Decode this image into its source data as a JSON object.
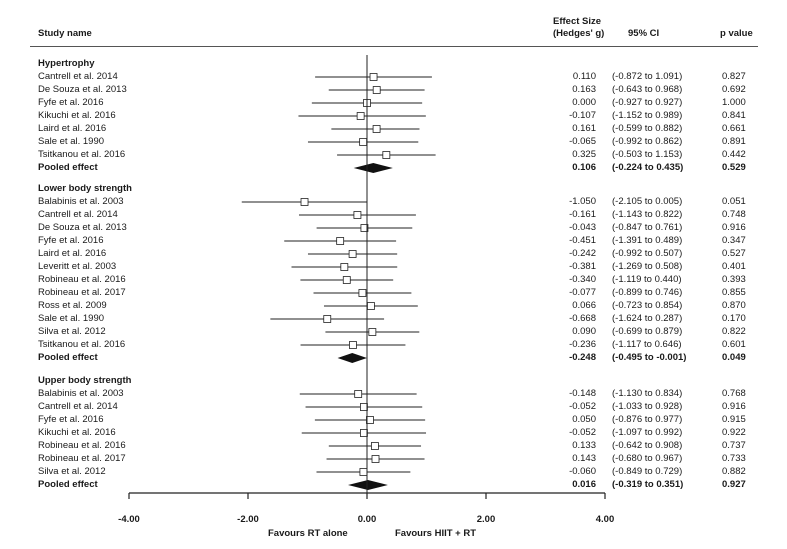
{
  "header": {
    "study_col": "Study name",
    "effect_col_line1": "Effect Size",
    "effect_col_line2": "(Hedges' g)",
    "ci_col": "95% CI",
    "p_col": "p value"
  },
  "chart_data": {
    "type": "forest",
    "xlim": [
      -4,
      4
    ],
    "x_ticks": [
      -4,
      -2,
      0,
      2,
      4
    ],
    "x_tick_labels": [
      "-4.00",
      "-2.00",
      "0.00",
      "2.00",
      "4.00"
    ],
    "favours_left": "Favours RT alone",
    "favours_right": "Favours HIIT + RT",
    "groups": [
      {
        "name": "Hypertrophy",
        "studies": [
          {
            "study": "Cantrell et al. 2014",
            "g": 0.11,
            "lo": -0.872,
            "hi": 1.091,
            "g_text": "0.110",
            "ci_text": "(-0.872 to 1.091)",
            "p_text": "0.827"
          },
          {
            "study": "De Souza et al. 2013",
            "g": 0.163,
            "lo": -0.643,
            "hi": 0.968,
            "g_text": "0.163",
            "ci_text": "(-0.643 to 0.968)",
            "p_text": "0.692"
          },
          {
            "study": "Fyfe et al. 2016",
            "g": 0.0,
            "lo": -0.927,
            "hi": 0.927,
            "g_text": "0.000",
            "ci_text": "(-0.927 to 0.927)",
            "p_text": "1.000"
          },
          {
            "study": "Kikuchi et al. 2016",
            "g": -0.107,
            "lo": -1.152,
            "hi": 0.989,
            "g_text": "-0.107",
            "ci_text": "(-1.152 to 0.989)",
            "p_text": "0.841"
          },
          {
            "study": "Laird et al. 2016",
            "g": 0.161,
            "lo": -0.599,
            "hi": 0.882,
            "g_text": "0.161",
            "ci_text": "(-0.599 to 0.882)",
            "p_text": "0.661"
          },
          {
            "study": "Sale et al. 1990",
            "g": -0.065,
            "lo": -0.992,
            "hi": 0.862,
            "g_text": "-0.065",
            "ci_text": "(-0.992 to 0.862)",
            "p_text": "0.891"
          },
          {
            "study": "Tsitkanou et al. 2016",
            "g": 0.325,
            "lo": -0.503,
            "hi": 1.153,
            "g_text": "0.325",
            "ci_text": "(-0.503 to 1.153)",
            "p_text": "0.442"
          }
        ],
        "pooled": {
          "label": "Pooled effect",
          "g": 0.106,
          "lo": -0.224,
          "hi": 0.435,
          "g_text": "0.106",
          "ci_text": "(-0.224 to 0.435)",
          "p_text": "0.529"
        }
      },
      {
        "name": "Lower body strength",
        "studies": [
          {
            "study": "Balabinis et al. 2003",
            "g": -1.05,
            "lo": -2.105,
            "hi": 0.005,
            "g_text": "-1.050",
            "ci_text": "(-2.105 to 0.005)",
            "p_text": "0.051"
          },
          {
            "study": "Cantrell et al. 2014",
            "g": -0.161,
            "lo": -1.143,
            "hi": 0.822,
            "g_text": "-0.161",
            "ci_text": "(-1.143 to 0.822)",
            "p_text": "0.748"
          },
          {
            "study": "De Souza et al. 2013",
            "g": -0.043,
            "lo": -0.847,
            "hi": 0.761,
            "g_text": "-0.043",
            "ci_text": "(-0.847 to 0.761)",
            "p_text": "0.916"
          },
          {
            "study": "Fyfe et al. 2016",
            "g": -0.451,
            "lo": -1.391,
            "hi": 0.489,
            "g_text": "-0.451",
            "ci_text": "(-1.391 to 0.489)",
            "p_text": "0.347"
          },
          {
            "study": "Laird et al. 2016",
            "g": -0.242,
            "lo": -0.992,
            "hi": 0.507,
            "g_text": "-0.242",
            "ci_text": "(-0.992 to 0.507)",
            "p_text": "0.527"
          },
          {
            "study": "Leveritt et al. 2003",
            "g": -0.381,
            "lo": -1.269,
            "hi": 0.508,
            "g_text": "-0.381",
            "ci_text": "(-1.269 to 0.508)",
            "p_text": "0.401"
          },
          {
            "study": "Robineau et al. 2016",
            "g": -0.34,
            "lo": -1.119,
            "hi": 0.44,
            "g_text": "-0.340",
            "ci_text": "(-1.119 to 0.440)",
            "p_text": "0.393"
          },
          {
            "study": "Robineau et al. 2017",
            "g": -0.077,
            "lo": -0.899,
            "hi": 0.746,
            "g_text": "-0.077",
            "ci_text": "(-0.899 to 0.746)",
            "p_text": "0.855"
          },
          {
            "study": "Ross et al. 2009",
            "g": 0.066,
            "lo": -0.723,
            "hi": 0.854,
            "g_text": "0.066",
            "ci_text": "(-0.723 to 0.854)",
            "p_text": "0.870"
          },
          {
            "study": "Sale et al. 1990",
            "g": -0.668,
            "lo": -1.624,
            "hi": 0.287,
            "g_text": "-0.668",
            "ci_text": "(-1.624 to 0.287)",
            "p_text": "0.170"
          },
          {
            "study": "Silva et al. 2012",
            "g": 0.09,
            "lo": -0.699,
            "hi": 0.879,
            "g_text": "0.090",
            "ci_text": "(-0.699 to 0.879)",
            "p_text": "0.822"
          },
          {
            "study": "Tsitkanou et al. 2016",
            "g": -0.236,
            "lo": -1.117,
            "hi": 0.646,
            "g_text": "-0.236",
            "ci_text": "(-1.117 to 0.646)",
            "p_text": "0.601"
          }
        ],
        "pooled": {
          "label": "Pooled effect",
          "g": -0.248,
          "lo": -0.495,
          "hi": -0.001,
          "g_text": "-0.248",
          "ci_text": "(-0.495 to -0.001)",
          "p_text": "0.049"
        }
      },
      {
        "name": "Upper body strength",
        "studies": [
          {
            "study": "Balabinis et al. 2003",
            "g": -0.148,
            "lo": -1.13,
            "hi": 0.834,
            "g_text": "-0.148",
            "ci_text": "(-1.130 to 0.834)",
            "p_text": "0.768"
          },
          {
            "study": "Cantrell et al. 2014",
            "g": -0.052,
            "lo": -1.033,
            "hi": 0.928,
            "g_text": "-0.052",
            "ci_text": "(-1.033 to 0.928)",
            "p_text": "0.916"
          },
          {
            "study": "Fyfe et al. 2016",
            "g": 0.05,
            "lo": -0.876,
            "hi": 0.977,
            "g_text": "0.050",
            "ci_text": "(-0.876 to 0.977)",
            "p_text": "0.915"
          },
          {
            "study": "Kikuchi et al. 2016",
            "g": -0.052,
            "lo": -1.097,
            "hi": 0.992,
            "g_text": "-0.052",
            "ci_text": "(-1.097 to 0.992)",
            "p_text": "0.922"
          },
          {
            "study": "Robineau et al. 2016",
            "g": 0.133,
            "lo": -0.642,
            "hi": 0.908,
            "g_text": "0.133",
            "ci_text": "(-0.642 to 0.908)",
            "p_text": "0.737"
          },
          {
            "study": "Robineau et al. 2017",
            "g": 0.143,
            "lo": -0.68,
            "hi": 0.967,
            "g_text": "0.143",
            "ci_text": "(-0.680 to 0.967)",
            "p_text": "0.733"
          },
          {
            "study": "Silva et al. 2012",
            "g": -0.06,
            "lo": -0.849,
            "hi": 0.729,
            "g_text": "-0.060",
            "ci_text": "(-0.849 to 0.729)",
            "p_text": "0.882"
          }
        ],
        "pooled": {
          "label": "Pooled effect",
          "g": 0.016,
          "lo": -0.319,
          "hi": 0.351,
          "g_text": "0.016",
          "ci_text": "(-0.319 to 0.351)",
          "p_text": "0.927"
        }
      }
    ]
  }
}
